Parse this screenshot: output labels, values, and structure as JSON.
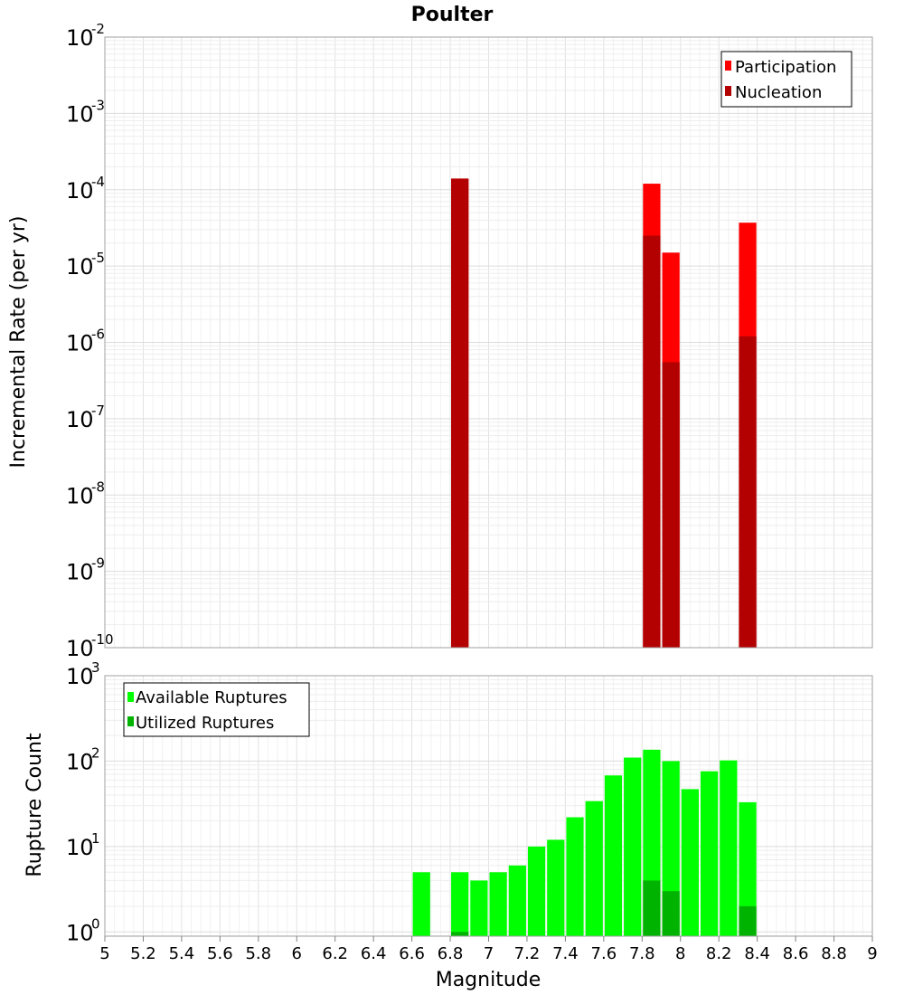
{
  "chart_data": [
    {
      "type": "bar",
      "title": "Poulter",
      "ylabel": "Incremental Rate (per yr)",
      "xlabel": "",
      "yscale": "log",
      "ylim_exp": [
        -10,
        -2
      ],
      "xlim": [
        5,
        9
      ],
      "bin_width": 0.1,
      "legend_position": "top-right",
      "series": [
        {
          "name": "Participation",
          "color": "#ff0000",
          "points": [
            {
              "x": 6.85,
              "y": 0.00014
            },
            {
              "x": 7.85,
              "y": 0.00012
            },
            {
              "x": 7.95,
              "y": 1.5e-05
            },
            {
              "x": 8.35,
              "y": 3.7e-05
            }
          ]
        },
        {
          "name": "Nucleation",
          "color": "#b30000",
          "points": [
            {
              "x": 6.85,
              "y": 0.00014
            },
            {
              "x": 7.85,
              "y": 2.5e-05
            },
            {
              "x": 7.95,
              "y": 5.5e-07
            },
            {
              "x": 8.35,
              "y": 1.2e-06
            }
          ]
        }
      ]
    },
    {
      "type": "bar",
      "title": "",
      "ylabel": "Rupture Count",
      "xlabel": "Magnitude",
      "yscale": "log",
      "ylim_exp": [
        -0.05,
        3
      ],
      "xlim": [
        5,
        9
      ],
      "bin_width": 0.1,
      "legend_position": "top-left",
      "series": [
        {
          "name": "Available Ruptures",
          "color": "#00ff00",
          "points": [
            {
              "x": 6.65,
              "y": 5
            },
            {
              "x": 6.85,
              "y": 5
            },
            {
              "x": 6.95,
              "y": 4
            },
            {
              "x": 7.05,
              "y": 5
            },
            {
              "x": 7.15,
              "y": 6
            },
            {
              "x": 7.25,
              "y": 10
            },
            {
              "x": 7.35,
              "y": 12
            },
            {
              "x": 7.45,
              "y": 22
            },
            {
              "x": 7.55,
              "y": 34
            },
            {
              "x": 7.65,
              "y": 68
            },
            {
              "x": 7.75,
              "y": 110
            },
            {
              "x": 7.85,
              "y": 136
            },
            {
              "x": 7.95,
              "y": 100
            },
            {
              "x": 8.05,
              "y": 47
            },
            {
              "x": 8.15,
              "y": 76
            },
            {
              "x": 8.25,
              "y": 102
            },
            {
              "x": 8.35,
              "y": 33
            }
          ]
        },
        {
          "name": "Utilized Ruptures",
          "color": "#00b300",
          "points": [
            {
              "x": 6.85,
              "y": 1
            },
            {
              "x": 7.85,
              "y": 4
            },
            {
              "x": 7.95,
              "y": 3
            },
            {
              "x": 8.35,
              "y": 2
            }
          ]
        }
      ]
    }
  ],
  "x_ticks": [
    "5",
    "5.2",
    "5.4",
    "5.6",
    "5.8",
    "6",
    "6.2",
    "6.4",
    "6.6",
    "6.8",
    "7",
    "7.2",
    "7.4",
    "7.6",
    "7.8",
    "8",
    "8.2",
    "8.4",
    "8.6",
    "8.8",
    "9"
  ],
  "top_y_ticks": [
    {
      "base": "10",
      "exp": "-2"
    },
    {
      "base": "10",
      "exp": "-3"
    },
    {
      "base": "10",
      "exp": "-4"
    },
    {
      "base": "10",
      "exp": "-5"
    },
    {
      "base": "10",
      "exp": "-6"
    },
    {
      "base": "10",
      "exp": "-7"
    },
    {
      "base": "10",
      "exp": "-8"
    },
    {
      "base": "10",
      "exp": "-9"
    },
    {
      "base": "10",
      "exp": "-10"
    }
  ],
  "bottom_y_ticks": [
    {
      "base": "10",
      "exp": "3"
    },
    {
      "base": "10",
      "exp": "2"
    },
    {
      "base": "10",
      "exp": "1"
    },
    {
      "base": "10",
      "exp": "0"
    }
  ]
}
